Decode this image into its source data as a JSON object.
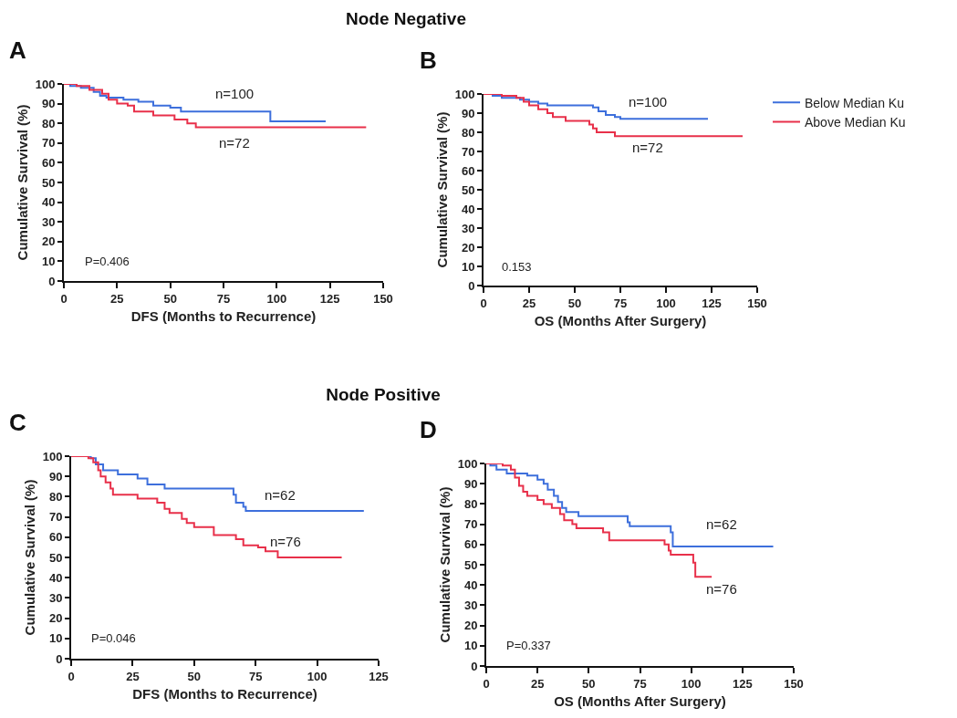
{
  "chart_data": [
    {
      "type": "step",
      "title": "Node Negative",
      "xlabel": "DFS (Months to Recurrence)",
      "ylabel": "Cumulative Survival (%)",
      "xlim": [
        0,
        150
      ],
      "xticks": [
        0,
        25,
        50,
        75,
        100,
        125,
        150
      ],
      "ylim": [
        0,
        100
      ],
      "yticks": [
        0,
        10,
        20,
        30,
        40,
        50,
        60,
        70,
        80,
        90,
        100
      ],
      "grid": false,
      "legend": false,
      "annotations": [
        "A",
        "P=0.406",
        "n=100",
        "n=72"
      ],
      "series": [
        {
          "color": "#3d6fdc",
          "x": [
            0,
            3,
            8,
            14,
            17,
            20,
            28,
            35,
            42,
            50,
            55,
            97,
            123
          ],
          "values": [
            100,
            99,
            98,
            96,
            94,
            93,
            92,
            91,
            89,
            88,
            86,
            81,
            81
          ]
        },
        {
          "color": "#e8304a",
          "x": [
            0,
            6,
            12,
            18,
            21,
            25,
            30,
            33,
            42,
            52,
            58,
            62,
            142
          ],
          "values": [
            100,
            99,
            97,
            95,
            92,
            90,
            89,
            86,
            84,
            82,
            80,
            78,
            78
          ]
        }
      ]
    },
    {
      "type": "step",
      "xlabel": "OS (Months After Surgery)",
      "ylabel": "Cumulative Survival (%)",
      "xlim": [
        0,
        150
      ],
      "xticks": [
        0,
        25,
        50,
        75,
        100,
        125,
        150
      ],
      "ylim": [
        0,
        100
      ],
      "yticks": [
        0,
        10,
        20,
        30,
        40,
        50,
        60,
        70,
        80,
        90,
        100
      ],
      "grid": false,
      "legend": "right",
      "annotations": [
        "B",
        "0.153",
        "n=100",
        "n=72"
      ],
      "series": [
        {
          "name": "Below Median Ku",
          "color": "#3d6fdc",
          "x": [
            0,
            5,
            10,
            20,
            25,
            30,
            35,
            60,
            63,
            67,
            72,
            75,
            123
          ],
          "values": [
            100,
            99,
            98,
            97,
            96,
            95,
            94,
            93,
            91,
            89,
            88,
            87,
            87
          ]
        },
        {
          "name": "Above Median Ku",
          "color": "#e8304a",
          "x": [
            0,
            10,
            18,
            22,
            25,
            30,
            35,
            38,
            45,
            58,
            60,
            62,
            72,
            142
          ],
          "values": [
            100,
            99,
            98,
            96,
            94,
            92,
            90,
            88,
            86,
            84,
            82,
            80,
            78,
            78
          ]
        }
      ]
    },
    {
      "type": "step",
      "title": "Node Positive",
      "xlabel": "DFS (Months to Recurrence)",
      "ylabel": "Cumulative Survival (%)",
      "xlim": [
        0,
        125
      ],
      "xticks": [
        0,
        25,
        50,
        75,
        100,
        125
      ],
      "ylim": [
        0,
        100
      ],
      "yticks": [
        0,
        10,
        20,
        30,
        40,
        50,
        60,
        70,
        80,
        90,
        100
      ],
      "grid": false,
      "legend": false,
      "annotations": [
        "C",
        "P=0.046",
        "n=62",
        "n=76"
      ],
      "series": [
        {
          "color": "#3d6fdc",
          "x": [
            0,
            8,
            10,
            13,
            19,
            27,
            31,
            38,
            66,
            67,
            70,
            71,
            119
          ],
          "values": [
            100,
            99,
            96,
            93,
            91,
            89,
            86,
            84,
            81,
            77,
            75,
            73,
            73
          ]
        },
        {
          "color": "#e8304a",
          "x": [
            0,
            7,
            9,
            11,
            12,
            14,
            16,
            17,
            27,
            35,
            38,
            40,
            45,
            47,
            50,
            58,
            67,
            70,
            76,
            79,
            84,
            110
          ],
          "values": [
            100,
            99,
            97,
            93,
            90,
            87,
            84,
            81,
            79,
            77,
            74,
            72,
            69,
            67,
            65,
            61,
            59,
            56,
            55,
            53,
            50,
            50
          ]
        }
      ]
    },
    {
      "type": "step",
      "xlabel": "OS (Months After Surgery)",
      "ylabel": "Cumulative Survival (%)",
      "xlim": [
        0,
        150
      ],
      "xticks": [
        0,
        25,
        50,
        75,
        100,
        125,
        150
      ],
      "ylim": [
        0,
        100
      ],
      "yticks": [
        0,
        10,
        20,
        30,
        40,
        50,
        60,
        70,
        80,
        90,
        100
      ],
      "grid": false,
      "legend": false,
      "annotations": [
        "D",
        "P=0.337",
        "n=62",
        "n=76"
      ],
      "series": [
        {
          "color": "#3d6fdc",
          "x": [
            0,
            2,
            5,
            10,
            20,
            25,
            28,
            30,
            33,
            35,
            37,
            39,
            45,
            69,
            70,
            90,
            91,
            140
          ],
          "values": [
            100,
            99,
            97,
            95,
            94,
            92,
            90,
            87,
            84,
            81,
            78,
            76,
            74,
            71,
            69,
            66,
            59,
            59
          ]
        },
        {
          "color": "#e8304a",
          "x": [
            0,
            8,
            12,
            14,
            16,
            18,
            20,
            25,
            28,
            32,
            36,
            38,
            42,
            44,
            57,
            60,
            87,
            89,
            90,
            101,
            102,
            110
          ],
          "values": [
            100,
            99,
            97,
            93,
            89,
            86,
            84,
            82,
            80,
            78,
            75,
            72,
            70,
            68,
            66,
            62,
            60,
            57,
            55,
            51,
            44,
            44
          ]
        }
      ]
    }
  ]
}
